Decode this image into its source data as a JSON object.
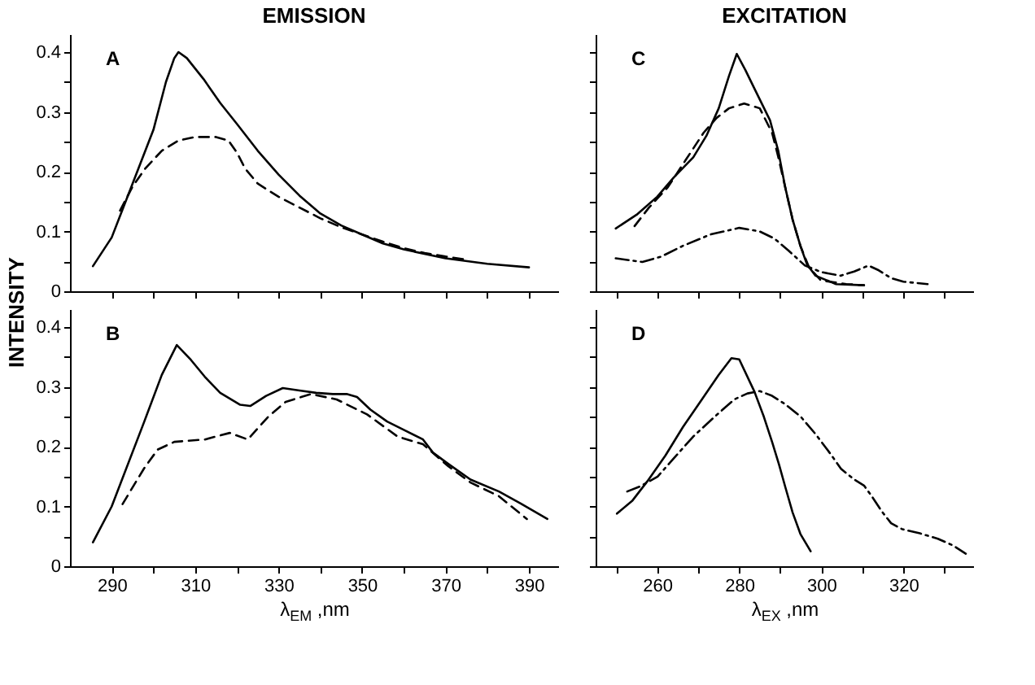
{
  "chart_data": [
    {
      "type": "line",
      "title": "EMISSION",
      "ylabel": "INTENSITY",
      "annotations": [
        "A"
      ],
      "tick_labels": "y",
      "xlim": [
        280,
        397
      ],
      "ylim": [
        0,
        0.43
      ],
      "xticks": [
        290,
        {
          "value": 300,
          "label": null
        },
        310,
        {
          "value": 320,
          "label": null
        },
        330,
        {
          "value": 340,
          "label": null
        },
        350,
        {
          "value": 360,
          "label": null
        },
        370,
        {
          "value": 380,
          "label": null
        },
        390
      ],
      "yticks": [
        0,
        {
          "value": 0.05,
          "label": null
        },
        0.1,
        {
          "value": 0.15,
          "label": null
        },
        0.2,
        {
          "value": 0.25,
          "label": null
        },
        0.3,
        {
          "value": 0.35,
          "label": null
        },
        0.4
      ],
      "series": [
        {
          "color": "#000000",
          "line_style": "solid",
          "x": [
            285.5,
            290,
            295,
            300,
            303,
            305,
            306,
            308,
            312,
            316,
            320,
            325,
            330,
            335,
            340,
            345,
            350,
            355,
            360,
            370,
            380,
            390
          ],
          "values": [
            0.042,
            0.09,
            0.18,
            0.27,
            0.35,
            0.39,
            0.4,
            0.39,
            0.355,
            0.315,
            0.28,
            0.235,
            0.195,
            0.16,
            0.13,
            0.11,
            0.095,
            0.08,
            0.07,
            0.055,
            0.046,
            0.04
          ]
        },
        {
          "color": "#000000",
          "line_style": "dashed",
          "x": [
            292,
            295,
            298,
            302,
            306,
            310,
            315,
            318,
            320,
            322,
            325,
            330,
            335,
            340,
            345,
            350,
            355,
            360,
            365,
            370,
            375
          ],
          "values": [
            0.135,
            0.175,
            0.205,
            0.235,
            0.252,
            0.258,
            0.258,
            0.252,
            0.232,
            0.205,
            0.18,
            0.158,
            0.14,
            0.122,
            0.107,
            0.095,
            0.083,
            0.072,
            0.064,
            0.058,
            0.053
          ]
        }
      ]
    },
    {
      "type": "line",
      "xlabel": "λ$_{EM}$ ,nm",
      "annotations": [
        "B"
      ],
      "xlim": [
        280,
        397
      ],
      "ylim": [
        0,
        0.43
      ],
      "xticks": [
        290,
        {
          "value": 300,
          "label": null
        },
        310,
        {
          "value": 320,
          "label": null
        },
        330,
        {
          "value": 340,
          "label": null
        },
        350,
        {
          "value": 360,
          "label": null
        },
        370,
        {
          "value": 380,
          "label": null
        },
        390
      ],
      "yticks": [
        0,
        {
          "value": 0.05,
          "label": null
        },
        0.1,
        {
          "value": 0.15,
          "label": null
        },
        0.2,
        {
          "value": 0.25,
          "label": null
        },
        0.3,
        {
          "value": 0.35,
          "label": null
        },
        0.4
      ],
      "series": [
        {
          "color": "#000000",
          "line_style": "solid",
          "x": [
            285.5,
            290,
            297.7,
            302,
            305.6,
            309,
            312.3,
            316,
            320.8,
            323.2,
            327,
            331,
            335,
            339,
            343,
            346.3,
            348.8,
            352,
            356,
            360,
            364.6,
            367,
            370.7,
            376,
            382.8,
            388,
            394.4
          ],
          "values": [
            0.04,
            0.1,
            0.24,
            0.32,
            0.37,
            0.345,
            0.317,
            0.29,
            0.27,
            0.268,
            0.285,
            0.298,
            0.294,
            0.29,
            0.288,
            0.288,
            0.283,
            0.262,
            0.242,
            0.228,
            0.212,
            0.19,
            0.171,
            0.145,
            0.125,
            0.105,
            0.079
          ]
        },
        {
          "color": "#000000",
          "line_style": "dashed",
          "x": [
            292.6,
            297.7,
            301,
            305,
            312.3,
            318.3,
            322.6,
            327.5,
            331.7,
            337.8,
            343.9,
            351.2,
            358.5,
            364.6,
            370.7,
            376,
            382.8,
            389.5
          ],
          "values": [
            0.104,
            0.163,
            0.195,
            0.208,
            0.212,
            0.223,
            0.212,
            0.25,
            0.275,
            0.288,
            0.279,
            0.254,
            0.217,
            0.204,
            0.167,
            0.14,
            0.117,
            0.079
          ]
        }
      ]
    },
    {
      "type": "line",
      "title": "EXCITATION",
      "annotations": [
        "C"
      ],
      "tick_labels": false,
      "xlim": [
        245,
        337
      ],
      "ylim": [
        0,
        0.43
      ],
      "xticks": [
        {
          "value": 250,
          "label": null
        },
        260,
        {
          "value": 270,
          "label": null
        },
        280,
        {
          "value": 290,
          "label": null
        },
        300,
        {
          "value": 310,
          "label": null
        },
        320,
        {
          "value": 330,
          "label": null
        }
      ],
      "yticks": [
        0,
        {
          "value": 0.05,
          "label": null
        },
        0.1,
        {
          "value": 0.15,
          "label": null
        },
        0.2,
        {
          "value": 0.25,
          "label": null
        },
        0.3,
        {
          "value": 0.35,
          "label": null
        },
        0.4
      ],
      "series": [
        {
          "color": "#000000",
          "line_style": "solid",
          "x": [
            249.9,
            255,
            260,
            264,
            268.8,
            272,
            275,
            277.5,
            279.4,
            281.5,
            283.7,
            287.5,
            289.5,
            291.2,
            293,
            294.9,
            296.5,
            298.6,
            303.6,
            310.4
          ],
          "values": [
            0.105,
            0.128,
            0.158,
            0.19,
            0.224,
            0.26,
            0.306,
            0.36,
            0.397,
            0.37,
            0.339,
            0.286,
            0.235,
            0.174,
            0.12,
            0.076,
            0.045,
            0.026,
            0.012,
            0.01
          ]
        },
        {
          "color": "#000000",
          "line_style": "dashed",
          "x": [
            254.5,
            258,
            262.6,
            267,
            271.3,
            274.5,
            277.5,
            281.2,
            285,
            288,
            289.5,
            291.2,
            293,
            294.9,
            297,
            299.9,
            306.1,
            310.4
          ],
          "values": [
            0.109,
            0.14,
            0.174,
            0.22,
            0.265,
            0.29,
            0.306,
            0.314,
            0.306,
            0.265,
            0.225,
            0.174,
            0.12,
            0.076,
            0.04,
            0.018,
            0.012,
            0.01
          ]
        },
        {
          "color": "#000000",
          "line_style": "dashdot",
          "x": [
            249.9,
            256.4,
            261,
            266.3,
            273,
            280,
            285,
            288.6,
            292,
            296,
            300,
            304.7,
            308,
            311.5,
            314,
            317,
            320,
            325.9
          ],
          "values": [
            0.055,
            0.049,
            0.058,
            0.076,
            0.095,
            0.106,
            0.1,
            0.088,
            0.068,
            0.043,
            0.032,
            0.026,
            0.033,
            0.043,
            0.035,
            0.022,
            0.016,
            0.012
          ]
        }
      ]
    },
    {
      "type": "line",
      "xlabel": "λ$_{EX}$ ,nm",
      "annotations": [
        "D"
      ],
      "tick_labels": "x",
      "xlim": [
        245,
        337
      ],
      "ylim": [
        0,
        0.43
      ],
      "xticks": [
        {
          "value": 250,
          "label": null
        },
        260,
        {
          "value": 270,
          "label": null
        },
        280,
        {
          "value": 290,
          "label": null
        },
        300,
        {
          "value": 310,
          "label": null
        },
        320,
        {
          "value": 330,
          "label": null
        }
      ],
      "yticks": [
        0,
        {
          "value": 0.05,
          "label": null
        },
        0.1,
        {
          "value": 0.15,
          "label": null
        },
        0.2,
        {
          "value": 0.25,
          "label": null
        },
        0.3,
        {
          "value": 0.35,
          "label": null
        },
        0.4
      ],
      "series": [
        {
          "color": "#000000",
          "line_style": "solid",
          "x": [
            250.2,
            254,
            257.6,
            262,
            266.3,
            271,
            275,
            278.1,
            280,
            283.7,
            286,
            288,
            289.7,
            291.2,
            293,
            294.9,
            297.4
          ],
          "values": [
            0.088,
            0.11,
            0.142,
            0.185,
            0.233,
            0.28,
            0.32,
            0.348,
            0.346,
            0.292,
            0.25,
            0.208,
            0.17,
            0.133,
            0.09,
            0.054,
            0.025
          ]
        },
        {
          "color": "#000000",
          "line_style": "dashdot",
          "x": [
            252.7,
            256,
            260.1,
            264,
            268.8,
            274,
            278.8,
            282,
            285,
            288,
            291.2,
            295,
            298.6,
            302,
            304.8,
            308,
            310.4,
            312.5,
            314.7,
            317,
            319.7,
            324,
            328.4,
            332,
            335.2
          ],
          "values": [
            0.125,
            0.134,
            0.15,
            0.18,
            0.217,
            0.25,
            0.279,
            0.289,
            0.293,
            0.285,
            0.271,
            0.25,
            0.221,
            0.19,
            0.163,
            0.145,
            0.135,
            0.115,
            0.092,
            0.072,
            0.062,
            0.055,
            0.046,
            0.035,
            0.021
          ]
        }
      ]
    }
  ]
}
